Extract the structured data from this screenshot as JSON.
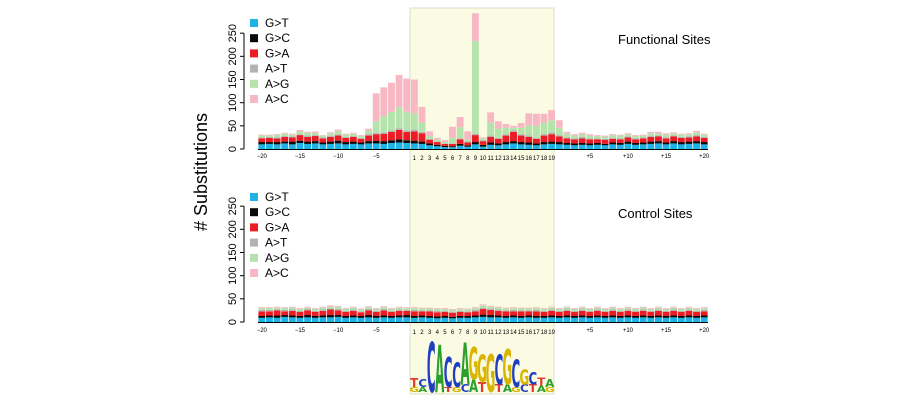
{
  "chart_data": {
    "type": "stacked-bar",
    "ylabel": "# Substitutions",
    "ylim": [
      0,
      300
    ],
    "yticks": [
      0,
      50,
      100,
      150,
      200,
      250
    ],
    "categories": [
      "-20",
      "-19",
      "-18",
      "-17",
      "-16",
      "-15",
      "-14",
      "-13",
      "-12",
      "-11",
      "-10",
      "-9",
      "-8",
      "-7",
      "-6",
      "-5",
      "-4",
      "-3",
      "-2",
      "-1",
      "1",
      "2",
      "3",
      "4",
      "5",
      "6",
      "7",
      "8",
      "9",
      "10",
      "11",
      "12",
      "13",
      "14",
      "15",
      "16",
      "17",
      "18",
      "19",
      "+1",
      "+2",
      "+3",
      "+4",
      "+5",
      "+6",
      "+7",
      "+8",
      "+9",
      "+10",
      "+11",
      "+12",
      "+13",
      "+14",
      "+15",
      "+16",
      "+17",
      "+18",
      "+19",
      "+20"
    ],
    "tick_labels": [
      "-20",
      "-15",
      "-10",
      "-5",
      "1",
      "2",
      "3",
      "4",
      "5",
      "6",
      "7",
      "8",
      "9",
      "10",
      "11",
      "12",
      "13",
      "14",
      "15",
      "16",
      "17",
      "18",
      "19",
      "+5",
      "+10",
      "+15",
      "+20"
    ],
    "highlight_region": "positions 1–19",
    "series_names": [
      "G>T",
      "G>C",
      "G>A",
      "A>T",
      "A>G",
      "A>C"
    ],
    "colors": {
      "G>T": "#1fb2e6",
      "G>C": "#0a0a0a",
      "G>A": "#ec1c24",
      "A>T": "#b3b3b3",
      "A>G": "#b4e3ac",
      "A>C": "#f7b8c4",
      "highlight": "#fbfbe4"
    },
    "panels": [
      {
        "title": "Functional Sites",
        "legend": [
          "G>T",
          "G>C",
          "G>A",
          "A>T",
          "A>G",
          "A>C"
        ],
        "stacks": [
          [
            10,
            5,
            8,
            2,
            4,
            2
          ],
          [
            11,
            4,
            9,
            2,
            4,
            1
          ],
          [
            10,
            5,
            8,
            2,
            5,
            2
          ],
          [
            12,
            4,
            10,
            2,
            5,
            2
          ],
          [
            10,
            6,
            9,
            2,
            4,
            2
          ],
          [
            13,
            5,
            12,
            2,
            6,
            3
          ],
          [
            11,
            5,
            10,
            3,
            6,
            2
          ],
          [
            12,
            5,
            11,
            2,
            5,
            3
          ],
          [
            10,
            4,
            9,
            2,
            4,
            1
          ],
          [
            11,
            5,
            10,
            2,
            6,
            2
          ],
          [
            12,
            6,
            11,
            3,
            7,
            3
          ],
          [
            10,
            5,
            9,
            2,
            5,
            2
          ],
          [
            11,
            5,
            10,
            2,
            5,
            2
          ],
          [
            10,
            4,
            8,
            2,
            4,
            2
          ],
          [
            12,
            5,
            12,
            3,
            8,
            4
          ],
          [
            12,
            6,
            14,
            3,
            25,
            60
          ],
          [
            11,
            6,
            16,
            3,
            35,
            62
          ],
          [
            13,
            6,
            18,
            3,
            40,
            63
          ],
          [
            14,
            7,
            20,
            4,
            45,
            70
          ],
          [
            13,
            6,
            18,
            3,
            40,
            72
          ],
          [
            12,
            6,
            20,
            4,
            35,
            73
          ],
          [
            11,
            5,
            18,
            3,
            20,
            34
          ],
          [
            8,
            4,
            8,
            2,
            6,
            10
          ],
          [
            6,
            3,
            6,
            1,
            4,
            4
          ],
          [
            4,
            3,
            4,
            1,
            3,
            4
          ],
          [
            4,
            2,
            5,
            1,
            12,
            24
          ],
          [
            7,
            4,
            10,
            2,
            24,
            22
          ],
          [
            5,
            3,
            6,
            2,
            4,
            18
          ],
          [
            10,
            5,
            15,
            3,
            200,
            60
          ],
          [
            5,
            4,
            8,
            2,
            4,
            2
          ],
          [
            9,
            5,
            12,
            3,
            28,
            22
          ],
          [
            8,
            4,
            10,
            2,
            20,
            16
          ],
          [
            10,
            5,
            14,
            3,
            14,
            8
          ],
          [
            12,
            5,
            20,
            3,
            6,
            4
          ],
          [
            10,
            5,
            14,
            3,
            14,
            10
          ],
          [
            9,
            5,
            12,
            3,
            22,
            26
          ],
          [
            8,
            4,
            10,
            2,
            26,
            26
          ],
          [
            10,
            5,
            14,
            3,
            24,
            20
          ],
          [
            11,
            5,
            16,
            4,
            26,
            22
          ],
          [
            10,
            5,
            12,
            3,
            16,
            16
          ],
          [
            9,
            4,
            10,
            2,
            8,
            4
          ],
          [
            8,
            4,
            9,
            2,
            6,
            3
          ],
          [
            9,
            4,
            10,
            3,
            6,
            3
          ],
          [
            8,
            4,
            9,
            2,
            6,
            3
          ],
          [
            9,
            4,
            8,
            2,
            5,
            2
          ],
          [
            8,
            3,
            9,
            2,
            5,
            2
          ],
          [
            10,
            4,
            8,
            2,
            6,
            2
          ],
          [
            9,
            4,
            8,
            2,
            6,
            2
          ],
          [
            11,
            5,
            9,
            2,
            5,
            2
          ],
          [
            9,
            4,
            8,
            2,
            5,
            2
          ],
          [
            10,
            4,
            9,
            2,
            4,
            2
          ],
          [
            11,
            5,
            10,
            2,
            6,
            3
          ],
          [
            12,
            5,
            10,
            2,
            5,
            3
          ],
          [
            10,
            4,
            9,
            2,
            6,
            3
          ],
          [
            12,
            5,
            10,
            2,
            5,
            2
          ],
          [
            10,
            5,
            9,
            2,
            5,
            2
          ],
          [
            11,
            5,
            9,
            2,
            5,
            2
          ],
          [
            12,
            5,
            10,
            3,
            6,
            3
          ],
          [
            10,
            5,
            9,
            2,
            5,
            2
          ]
        ]
      },
      {
        "title": "Control Sites",
        "legend": [
          "G>T",
          "G>C",
          "G>A",
          "A>T",
          "A>G",
          "A>C"
        ],
        "stacks": [
          [
            9,
            4,
            10,
            3,
            4,
            2
          ],
          [
            10,
            4,
            9,
            3,
            4,
            2
          ],
          [
            9,
            5,
            11,
            2,
            4,
            2
          ],
          [
            11,
            4,
            8,
            3,
            4,
            2
          ],
          [
            10,
            4,
            10,
            3,
            4,
            2
          ],
          [
            9,
            4,
            9,
            2,
            4,
            2
          ],
          [
            10,
            5,
            10,
            3,
            3,
            2
          ],
          [
            9,
            4,
            9,
            2,
            4,
            2
          ],
          [
            10,
            4,
            10,
            3,
            4,
            2
          ],
          [
            10,
            5,
            12,
            2,
            4,
            3
          ],
          [
            11,
            4,
            10,
            3,
            5,
            2
          ],
          [
            9,
            4,
            9,
            2,
            4,
            2
          ],
          [
            10,
            4,
            10,
            3,
            4,
            2
          ],
          [
            9,
            4,
            8,
            2,
            4,
            2
          ],
          [
            10,
            5,
            10,
            3,
            4,
            2
          ],
          [
            9,
            4,
            9,
            2,
            4,
            2
          ],
          [
            10,
            4,
            11,
            3,
            4,
            2
          ],
          [
            9,
            4,
            9,
            2,
            4,
            2
          ],
          [
            10,
            4,
            10,
            3,
            4,
            2
          ],
          [
            10,
            5,
            9,
            2,
            4,
            2
          ],
          [
            9,
            4,
            10,
            3,
            4,
            2
          ],
          [
            10,
            4,
            9,
            2,
            4,
            2
          ],
          [
            9,
            4,
            10,
            2,
            4,
            2
          ],
          [
            8,
            4,
            9,
            3,
            4,
            2
          ],
          [
            9,
            4,
            9,
            2,
            4,
            2
          ],
          [
            8,
            3,
            9,
            2,
            4,
            2
          ],
          [
            9,
            4,
            9,
            2,
            4,
            2
          ],
          [
            9,
            4,
            8,
            2,
            4,
            2
          ],
          [
            10,
            4,
            9,
            3,
            4,
            2
          ],
          [
            11,
            5,
            12,
            3,
            5,
            2
          ],
          [
            10,
            5,
            11,
            3,
            4,
            2
          ],
          [
            10,
            4,
            10,
            3,
            4,
            2
          ],
          [
            9,
            4,
            10,
            2,
            4,
            2
          ],
          [
            10,
            4,
            9,
            3,
            4,
            2
          ],
          [
            9,
            4,
            10,
            2,
            4,
            2
          ],
          [
            10,
            4,
            9,
            2,
            4,
            2
          ],
          [
            9,
            4,
            10,
            3,
            4,
            2
          ],
          [
            9,
            4,
            9,
            2,
            4,
            2
          ],
          [
            10,
            4,
            10,
            3,
            4,
            2
          ],
          [
            9,
            4,
            9,
            2,
            4,
            2
          ],
          [
            10,
            4,
            10,
            3,
            4,
            2
          ],
          [
            9,
            4,
            9,
            2,
            4,
            2
          ],
          [
            10,
            4,
            10,
            3,
            4,
            2
          ],
          [
            9,
            4,
            9,
            2,
            4,
            2
          ],
          [
            10,
            4,
            10,
            3,
            4,
            2
          ],
          [
            9,
            4,
            9,
            2,
            4,
            2
          ],
          [
            10,
            4,
            10,
            3,
            4,
            2
          ],
          [
            9,
            4,
            9,
            2,
            4,
            2
          ],
          [
            10,
            4,
            10,
            3,
            4,
            2
          ],
          [
            9,
            4,
            9,
            2,
            4,
            2
          ],
          [
            10,
            4,
            10,
            3,
            4,
            2
          ],
          [
            9,
            4,
            9,
            2,
            4,
            2
          ],
          [
            10,
            4,
            10,
            3,
            4,
            2
          ],
          [
            9,
            4,
            9,
            2,
            4,
            2
          ],
          [
            10,
            4,
            10,
            3,
            4,
            2
          ],
          [
            9,
            4,
            9,
            2,
            4,
            2
          ],
          [
            10,
            4,
            10,
            3,
            4,
            2
          ],
          [
            9,
            4,
            9,
            2,
            4,
            2
          ],
          [
            10,
            4,
            9,
            3,
            4,
            2
          ]
        ]
      }
    ],
    "sequence_logo": {
      "positions": [
        [
          {
            "letter": "T",
            "height": 0.35
          },
          {
            "letter": "G",
            "height": 0.2
          }
        ],
        [
          {
            "letter": "C",
            "height": 0.3
          },
          {
            "letter": "A",
            "height": 0.2
          }
        ],
        [
          {
            "letter": "C",
            "height": 2.0
          }
        ],
        [
          {
            "letter": "A",
            "height": 1.9
          }
        ],
        [
          {
            "letter": "C",
            "height": 1.2
          },
          {
            "letter": "T",
            "height": 0.2
          }
        ],
        [
          {
            "letter": "C",
            "height": 1.0
          },
          {
            "letter": "G",
            "height": 0.2
          }
        ],
        [
          {
            "letter": "A",
            "height": 1.7
          },
          {
            "letter": "C",
            "height": 0.3
          }
        ],
        [
          {
            "letter": "G",
            "height": 1.3
          },
          {
            "letter": "A",
            "height": 0.5
          }
        ],
        [
          {
            "letter": "G",
            "height": 1.1
          },
          {
            "letter": "T",
            "height": 0.4
          }
        ],
        [
          {
            "letter": "G",
            "height": 1.5
          }
        ],
        [
          {
            "letter": "C",
            "height": 1.2
          },
          {
            "letter": "T",
            "height": 0.3
          }
        ],
        [
          {
            "letter": "G",
            "height": 1.4
          },
          {
            "letter": "A",
            "height": 0.3
          }
        ],
        [
          {
            "letter": "C",
            "height": 1.1
          },
          {
            "letter": "G",
            "height": 0.2
          }
        ],
        [
          {
            "letter": "G",
            "height": 0.6
          },
          {
            "letter": "C",
            "height": 0.3
          }
        ],
        [
          {
            "letter": "C",
            "height": 0.5
          },
          {
            "letter": "T",
            "height": 0.3
          }
        ],
        [
          {
            "letter": "T",
            "height": 0.3
          },
          {
            "letter": "A",
            "height": 0.25
          }
        ],
        [
          {
            "letter": "A",
            "height": 0.3
          },
          {
            "letter": "G",
            "height": 0.2
          }
        ]
      ],
      "colors": {
        "A": "#2ca02c",
        "C": "#1f3fbf",
        "G": "#d9b400",
        "T": "#e23b2e"
      }
    }
  }
}
